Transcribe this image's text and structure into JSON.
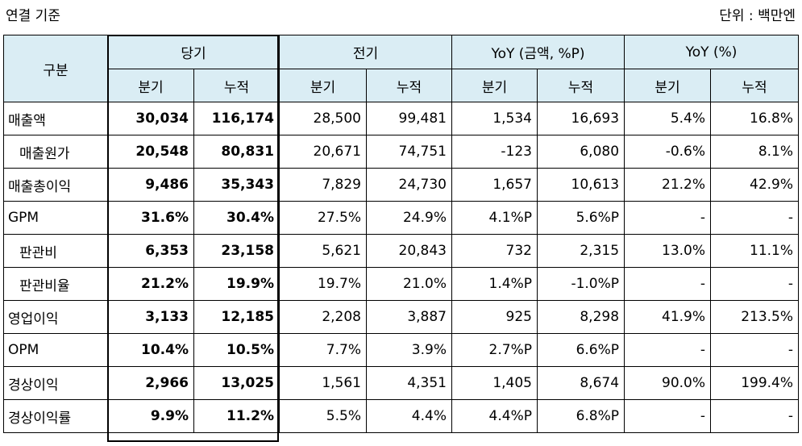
{
  "header": {
    "basis": "연결 기준",
    "unit": "단위 : 백만엔"
  },
  "table": {
    "row_header": "구분",
    "groups": [
      "당기",
      "전기",
      "YoY (금액, %P)",
      "YoY (%)"
    ],
    "subcolumns": [
      "분기",
      "누적"
    ],
    "rows": [
      {
        "label": "매출액",
        "indent": false,
        "values": [
          "30,034",
          "116,174",
          "28,500",
          "99,481",
          "1,534",
          "16,693",
          "5.4%",
          "16.8%"
        ]
      },
      {
        "label": "매출원가",
        "indent": true,
        "values": [
          "20,548",
          "80,831",
          "20,671",
          "74,751",
          "-123",
          "6,080",
          "-0.6%",
          "8.1%"
        ]
      },
      {
        "label": "매출총이익",
        "indent": false,
        "values": [
          "9,486",
          "35,343",
          "7,829",
          "24,730",
          "1,657",
          "10,613",
          "21.2%",
          "42.9%"
        ]
      },
      {
        "label": "GPM",
        "indent": false,
        "values": [
          "31.6%",
          "30.4%",
          "27.5%",
          "24.9%",
          "4.1%P",
          "5.6%P",
          "-",
          "-"
        ]
      },
      {
        "label": "판관비",
        "indent": true,
        "values": [
          "6,353",
          "23,158",
          "5,621",
          "20,843",
          "732",
          "2,315",
          "13.0%",
          "11.1%"
        ]
      },
      {
        "label": "판관비율",
        "indent": true,
        "values": [
          "21.2%",
          "19.9%",
          "19.7%",
          "21.0%",
          "1.4%P",
          "-1.0%P",
          "-",
          "-"
        ]
      },
      {
        "label": "영업이익",
        "indent": false,
        "values": [
          "3,133",
          "12,185",
          "2,208",
          "3,887",
          "925",
          "8,298",
          "41.9%",
          "213.5%"
        ]
      },
      {
        "label": "OPM",
        "indent": false,
        "values": [
          "10.4%",
          "10.5%",
          "7.7%",
          "3.9%",
          "2.7%P",
          "6.6%P",
          "-",
          "-"
        ]
      },
      {
        "label": "경상이익",
        "indent": false,
        "values": [
          "2,966",
          "13,025",
          "1,561",
          "4,351",
          "1,405",
          "8,674",
          "90.0%",
          "199.4%"
        ]
      },
      {
        "label": "경상이익률",
        "indent": false,
        "values": [
          "9.9%",
          "11.2%",
          "5.5%",
          "4.4%",
          "4.4%P",
          "6.8%P",
          "-",
          "-"
        ]
      }
    ]
  },
  "colors": {
    "header_bg": "#daedf4",
    "border": "#000000"
  }
}
